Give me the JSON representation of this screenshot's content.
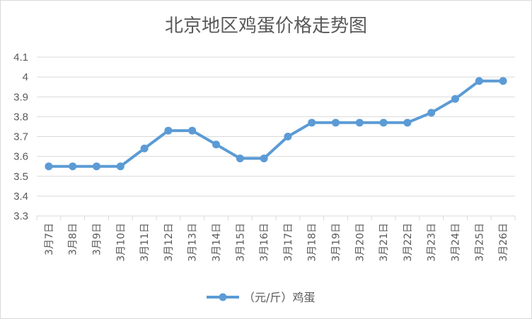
{
  "chart_data": {
    "type": "line",
    "title": "北京地区鸡蛋价格走势图",
    "categories": [
      "3月7日",
      "3月8日",
      "3月9日",
      "3月10日",
      "3月11日",
      "3月12日",
      "3月13日",
      "3月14日",
      "3月15日",
      "3月16日",
      "3月17日",
      "3月18日",
      "3月19日",
      "3月20日",
      "3月21日",
      "3月22日",
      "3月23日",
      "3月24日",
      "3月25日",
      "3月26日"
    ],
    "series": [
      {
        "name": "（元/斤）鸡蛋",
        "values": [
          3.55,
          3.55,
          3.55,
          3.55,
          3.64,
          3.73,
          3.73,
          3.66,
          3.59,
          3.59,
          3.7,
          3.77,
          3.77,
          3.77,
          3.77,
          3.77,
          3.82,
          3.89,
          3.98,
          3.98
        ]
      }
    ],
    "yticks": [
      "3.3",
      "3.4",
      "3.5",
      "3.6",
      "3.7",
      "3.8",
      "3.9",
      "4",
      "4.1"
    ],
    "ylim": [
      3.3,
      4.1
    ],
    "grid": true,
    "legend": "bottom",
    "color": "#5b9bd5",
    "gridColor": "#d9d9d9"
  }
}
